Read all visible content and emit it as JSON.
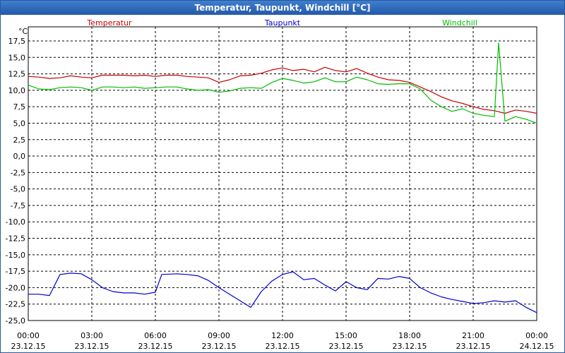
{
  "window": {
    "title": "Temperatur, Taupunkt, Windchill [°C]"
  },
  "chart_data": {
    "type": "line",
    "title": "Temperatur, Taupunkt, Windchill [°C]",
    "ylabel": "°C",
    "ylim": [
      -25,
      17.5
    ],
    "yticks": [
      "17,5",
      "15,0",
      "12,5",
      "10,0",
      "7,5",
      "5,0",
      "2,5",
      "0,0",
      "-2,5",
      "-5,0",
      "-7,5",
      "-10,0",
      "-12,5",
      "-15,0",
      "-17,5",
      "-20,0",
      "-22,5",
      "-25,0"
    ],
    "xlim": [
      0,
      24
    ],
    "xtick_times": [
      "00:00",
      "03:00",
      "06:00",
      "09:00",
      "12:00",
      "15:00",
      "18:00",
      "21:00",
      "00:00"
    ],
    "xtick_dates": [
      "23.12.15",
      "23.12.15",
      "23.12.15",
      "23.12.15",
      "23.12.15",
      "23.12.15",
      "23.12.15",
      "23.12.15",
      "24.12.15"
    ],
    "grid": true,
    "series": [
      {
        "name": "Temperatur",
        "color": "#cc0000",
        "x": [
          0,
          0.5,
          1,
          1.5,
          2,
          2.5,
          3,
          3.5,
          4,
          4.5,
          5,
          5.5,
          6,
          6.5,
          7,
          7.5,
          8,
          8.5,
          9,
          9.5,
          10,
          10.5,
          11,
          11.5,
          12,
          12.5,
          13,
          13.5,
          14,
          14.5,
          15,
          15.5,
          16,
          16.5,
          17,
          17.5,
          18,
          18.5,
          19,
          19.5,
          20,
          20.5,
          21,
          21.5,
          22,
          22.5,
          23,
          23.5,
          24
        ],
        "values": [
          12.1,
          12.0,
          11.8,
          11.9,
          12.2,
          12.0,
          11.9,
          12.3,
          12.3,
          12.3,
          12.2,
          12.3,
          12.1,
          12.3,
          12.3,
          12.1,
          12.0,
          11.9,
          11.2,
          11.6,
          12.2,
          12.3,
          12.6,
          13.1,
          13.4,
          13.0,
          13.2,
          12.8,
          13.5,
          13.0,
          12.8,
          13.3,
          12.6,
          12.0,
          11.6,
          11.5,
          11.2,
          10.5,
          9.8,
          9.0,
          8.4,
          8.0,
          7.5,
          7.1,
          6.9,
          6.5,
          7.0,
          6.8,
          6.5
        ]
      },
      {
        "name": "Taupunkt",
        "color": "#0000cc",
        "x": [
          0,
          0.5,
          1,
          1.5,
          2,
          2.5,
          3,
          3.5,
          4,
          4.5,
          5,
          5.5,
          6,
          6.3,
          7,
          7.5,
          8,
          8.5,
          9,
          9.5,
          10,
          10.5,
          11,
          11.5,
          12,
          12.5,
          13,
          13.5,
          14,
          14.5,
          15,
          15.5,
          16,
          16.5,
          17,
          17.5,
          18,
          18.5,
          19,
          19.5,
          20,
          20.5,
          21,
          21.5,
          22,
          22.5,
          23,
          23.5,
          24
        ],
        "values": [
          -21.0,
          -21.0,
          -21.2,
          -18.0,
          -17.8,
          -17.9,
          -18.8,
          -20.0,
          -20.6,
          -20.8,
          -20.8,
          -21.0,
          -20.7,
          -18.0,
          -17.9,
          -18.0,
          -18.2,
          -18.9,
          -20.0,
          -21.0,
          -22.0,
          -23.0,
          -20.6,
          -19.0,
          -18.0,
          -17.6,
          -18.8,
          -18.6,
          -19.6,
          -20.5,
          -19.1,
          -20.0,
          -20.3,
          -18.6,
          -18.7,
          -18.3,
          -18.6,
          -20.0,
          -20.8,
          -21.4,
          -21.8,
          -22.1,
          -22.4,
          -22.3,
          -22.0,
          -22.2,
          -22.0,
          -23.0,
          -23.8
        ]
      },
      {
        "name": "Windchill",
        "color": "#00bb00",
        "x": [
          0,
          0.5,
          1,
          1.5,
          2,
          2.5,
          3,
          3.5,
          4,
          4.5,
          5,
          5.5,
          6,
          6.5,
          7,
          7.5,
          8,
          8.5,
          9,
          9.5,
          10,
          10.5,
          11,
          11.5,
          12,
          12.5,
          13,
          13.5,
          14,
          14.5,
          15,
          15.5,
          16,
          16.5,
          17,
          17.5,
          18,
          18.5,
          19,
          19.5,
          20,
          20.5,
          21,
          21.5,
          22,
          22.2,
          22.5,
          23,
          23.5,
          24
        ],
        "values": [
          10.8,
          10.2,
          10.1,
          10.4,
          10.5,
          10.4,
          10.0,
          10.5,
          10.5,
          10.4,
          10.5,
          10.3,
          10.4,
          10.5,
          10.5,
          10.2,
          10.0,
          10.1,
          9.7,
          9.9,
          10.3,
          10.4,
          10.3,
          11.2,
          11.8,
          11.5,
          11.1,
          11.3,
          11.9,
          11.3,
          11.3,
          12.0,
          11.6,
          11.0,
          10.9,
          11.0,
          11.0,
          10.2,
          8.5,
          7.5,
          6.8,
          7.2,
          6.5,
          6.2,
          6.0,
          17.2,
          5.3,
          6.0,
          5.6,
          5.0
        ]
      }
    ]
  }
}
